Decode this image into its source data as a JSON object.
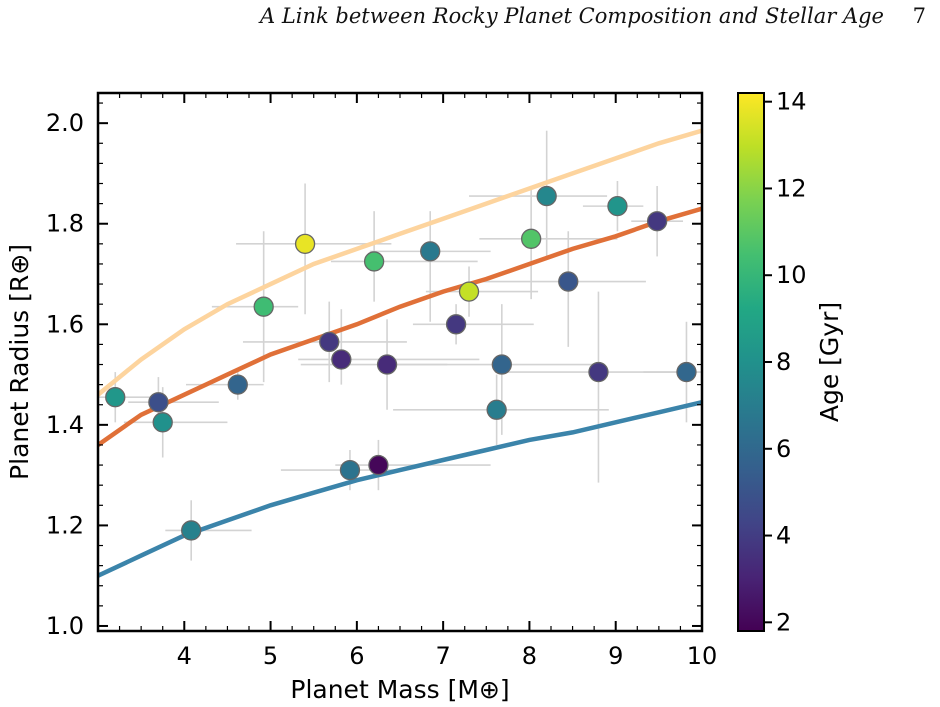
{
  "header": {
    "running_title": "A Link between Rocky Planet Composition and Stellar Age",
    "page_number": "7"
  },
  "chart_data": {
    "type": "scatter",
    "title": "",
    "xlabel": "Planet Mass [M⊕]",
    "ylabel": "Planet Radius [R⊕]",
    "xlim": [
      3.0,
      10.0
    ],
    "ylim": [
      0.99,
      2.06
    ],
    "x_ticks": [
      "4",
      "5",
      "6",
      "7",
      "8",
      "9",
      "10"
    ],
    "y_ticks": [
      "1.0",
      "1.2",
      "1.4",
      "1.6",
      "1.8",
      "2.0"
    ],
    "colorbar": {
      "label": "Age [Gyr]",
      "range": [
        1.8,
        14.2
      ],
      "ticks": [
        "2",
        "4",
        "6",
        "8",
        "10",
        "12",
        "14"
      ],
      "colormap": "viridis"
    },
    "curves": [
      {
        "color": "#fdd49e",
        "x": [
          3.0,
          3.5,
          4.0,
          4.5,
          5.0,
          5.5,
          6.0,
          6.5,
          7.0,
          7.5,
          8.0,
          8.5,
          9.0,
          9.5,
          10.0
        ],
        "y": [
          1.46,
          1.53,
          1.59,
          1.64,
          1.68,
          1.72,
          1.75,
          1.78,
          1.81,
          1.84,
          1.87,
          1.9,
          1.93,
          1.96,
          1.985
        ]
      },
      {
        "color": "#e07038",
        "x": [
          3.0,
          3.5,
          4.0,
          4.5,
          5.0,
          5.5,
          6.0,
          6.5,
          7.0,
          7.5,
          8.0,
          8.5,
          9.0,
          9.5,
          10.0
        ],
        "y": [
          1.36,
          1.42,
          1.46,
          1.5,
          1.54,
          1.57,
          1.6,
          1.635,
          1.665,
          1.69,
          1.72,
          1.75,
          1.775,
          1.805,
          1.83
        ]
      },
      {
        "color": "#3b84aa",
        "x": [
          3.0,
          3.5,
          4.0,
          4.5,
          5.0,
          5.5,
          6.0,
          6.5,
          7.0,
          7.5,
          8.0,
          8.5,
          9.0,
          9.5,
          10.0
        ],
        "y": [
          1.1,
          1.14,
          1.18,
          1.21,
          1.24,
          1.265,
          1.29,
          1.31,
          1.33,
          1.35,
          1.37,
          1.385,
          1.405,
          1.425,
          1.445
        ]
      }
    ],
    "points": [
      {
        "x": 3.2,
        "y": 1.455,
        "age": 8.3,
        "xerr": [
          0.25,
          0.4
        ],
        "yerr": [
          0.05,
          0.05
        ]
      },
      {
        "x": 3.7,
        "y": 1.445,
        "age": 4.8,
        "xerr": [
          0.35,
          0.7
        ],
        "yerr": [
          0.05,
          0.05
        ]
      },
      {
        "x": 3.75,
        "y": 1.405,
        "age": 8.0,
        "xerr": [
          0.45,
          0.75
        ],
        "yerr": [
          0.07,
          0.07
        ]
      },
      {
        "x": 4.08,
        "y": 1.19,
        "age": 7.2,
        "xerr": [
          0.3,
          0.7
        ],
        "yerr": [
          0.06,
          0.06
        ]
      },
      {
        "x": 4.62,
        "y": 1.48,
        "age": 5.8,
        "xerr": [
          0.6,
          0.3
        ],
        "yerr": [
          0.03,
          0.03
        ]
      },
      {
        "x": 4.92,
        "y": 1.635,
        "age": 10.3,
        "xerr": [
          0.6,
          0.4
        ],
        "yerr": [
          0.15,
          0.15
        ]
      },
      {
        "x": 5.4,
        "y": 1.76,
        "age": 13.8,
        "xerr": [
          0.8,
          1.0
        ],
        "yerr": [
          0.14,
          0.12
        ]
      },
      {
        "x": 5.68,
        "y": 1.565,
        "age": 3.8,
        "xerr": [
          1.0,
          0.9
        ],
        "yerr": [
          0.08,
          0.08
        ]
      },
      {
        "x": 5.82,
        "y": 1.53,
        "age": 3.3,
        "xerr": [
          0.5,
          1.6
        ],
        "yerr": [
          0.05,
          0.1
        ]
      },
      {
        "x": 5.92,
        "y": 1.31,
        "age": 6.5,
        "xerr": [
          0.8,
          0.6
        ],
        "yerr": [
          0.04,
          0.04
        ]
      },
      {
        "x": 6.2,
        "y": 1.725,
        "age": 10.5,
        "xerr": [
          0.5,
          1.2
        ],
        "yerr": [
          0.08,
          0.1
        ]
      },
      {
        "x": 6.25,
        "y": 1.32,
        "age": 2.0,
        "xerr": [
          0.5,
          1.3
        ],
        "yerr": [
          0.05,
          0.05
        ]
      },
      {
        "x": 6.35,
        "y": 1.52,
        "age": 3.3,
        "xerr": [
          1.0,
          0.7
        ],
        "yerr": [
          0.09,
          0.09
        ]
      },
      {
        "x": 6.85,
        "y": 1.745,
        "age": 6.8,
        "xerr": [
          0.7,
          0.7
        ],
        "yerr": [
          0.14,
          0.08
        ]
      },
      {
        "x": 7.15,
        "y": 1.6,
        "age": 3.8,
        "xerr": [
          0.5,
          0.9
        ],
        "yerr": [
          0.04,
          0.04
        ]
      },
      {
        "x": 7.3,
        "y": 1.665,
        "age": 13.1,
        "xerr": [
          0.5,
          0.8
        ],
        "yerr": [
          0.05,
          0.05
        ]
      },
      {
        "x": 7.62,
        "y": 1.43,
        "age": 7.0,
        "xerr": [
          1.2,
          1.3
        ],
        "yerr": [
          0.07,
          0.07
        ]
      },
      {
        "x": 7.68,
        "y": 1.52,
        "age": 5.8,
        "xerr": [
          1.3,
          1.1
        ],
        "yerr": [
          0.14,
          0.12
        ]
      },
      {
        "x": 8.02,
        "y": 1.77,
        "age": 10.8,
        "xerr": [
          0.6,
          1.0
        ],
        "yerr": [
          0.12,
          0.1
        ]
      },
      {
        "x": 8.2,
        "y": 1.855,
        "age": 7.5,
        "xerr": [
          0.9,
          0.7
        ],
        "yerr": [
          0.12,
          0.13
        ]
      },
      {
        "x": 8.45,
        "y": 1.685,
        "age": 5.1,
        "xerr": [
          1.0,
          0.9
        ],
        "yerr": [
          0.13,
          0.1
        ]
      },
      {
        "x": 8.8,
        "y": 1.505,
        "age": 3.8,
        "xerr": [
          1.2,
          1.0
        ],
        "yerr": [
          0.22,
          0.16
        ]
      },
      {
        "x": 9.02,
        "y": 1.835,
        "age": 8.2,
        "xerr": [
          0.4,
          0.3
        ],
        "yerr": [
          0.05,
          0.05
        ]
      },
      {
        "x": 9.48,
        "y": 1.805,
        "age": 3.8,
        "xerr": [
          0.3,
          0.3
        ],
        "yerr": [
          0.07,
          0.07
        ]
      },
      {
        "x": 9.82,
        "y": 1.505,
        "age": 5.9,
        "xerr": [
          0.5,
          0.3
        ],
        "yerr": [
          0.1,
          0.1
        ]
      }
    ]
  }
}
